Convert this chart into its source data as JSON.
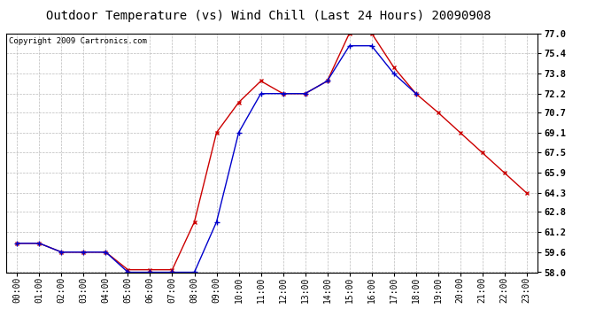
{
  "title": "Outdoor Temperature (vs) Wind Chill (Last 24 Hours) 20090908",
  "copyright": "Copyright 2009 Cartronics.com",
  "x_labels": [
    "00:00",
    "01:00",
    "02:00",
    "03:00",
    "04:00",
    "05:00",
    "06:00",
    "07:00",
    "08:00",
    "09:00",
    "10:00",
    "11:00",
    "12:00",
    "13:00",
    "14:00",
    "15:00",
    "16:00",
    "17:00",
    "18:00",
    "19:00",
    "20:00",
    "21:00",
    "22:00",
    "23:00"
  ],
  "outdoor_temp": [
    60.3,
    60.3,
    59.6,
    59.6,
    59.6,
    58.2,
    58.2,
    58.2,
    62.0,
    69.1,
    71.5,
    73.2,
    72.2,
    72.2,
    73.2,
    77.0,
    77.0,
    74.3,
    72.2,
    70.7,
    69.1,
    67.5,
    65.9,
    64.3
  ],
  "wind_chill": [
    60.3,
    60.3,
    59.6,
    59.6,
    59.6,
    58.0,
    58.0,
    58.0,
    58.0,
    62.0,
    69.1,
    72.2,
    72.2,
    72.2,
    73.2,
    76.0,
    76.0,
    73.8,
    72.2,
    null,
    null,
    null,
    null,
    null
  ],
  "ylim": [
    58.0,
    77.0
  ],
  "yticks": [
    58.0,
    59.6,
    61.2,
    62.8,
    64.3,
    65.9,
    67.5,
    69.1,
    70.7,
    72.2,
    73.8,
    75.4,
    77.0
  ],
  "temp_color": "#cc0000",
  "chill_color": "#0000cc",
  "background_color": "#ffffff",
  "grid_color": "#bbbbbb",
  "title_fontsize": 10,
  "copyright_fontsize": 6.5,
  "tick_fontsize": 7,
  "ytick_fontsize": 7.5
}
